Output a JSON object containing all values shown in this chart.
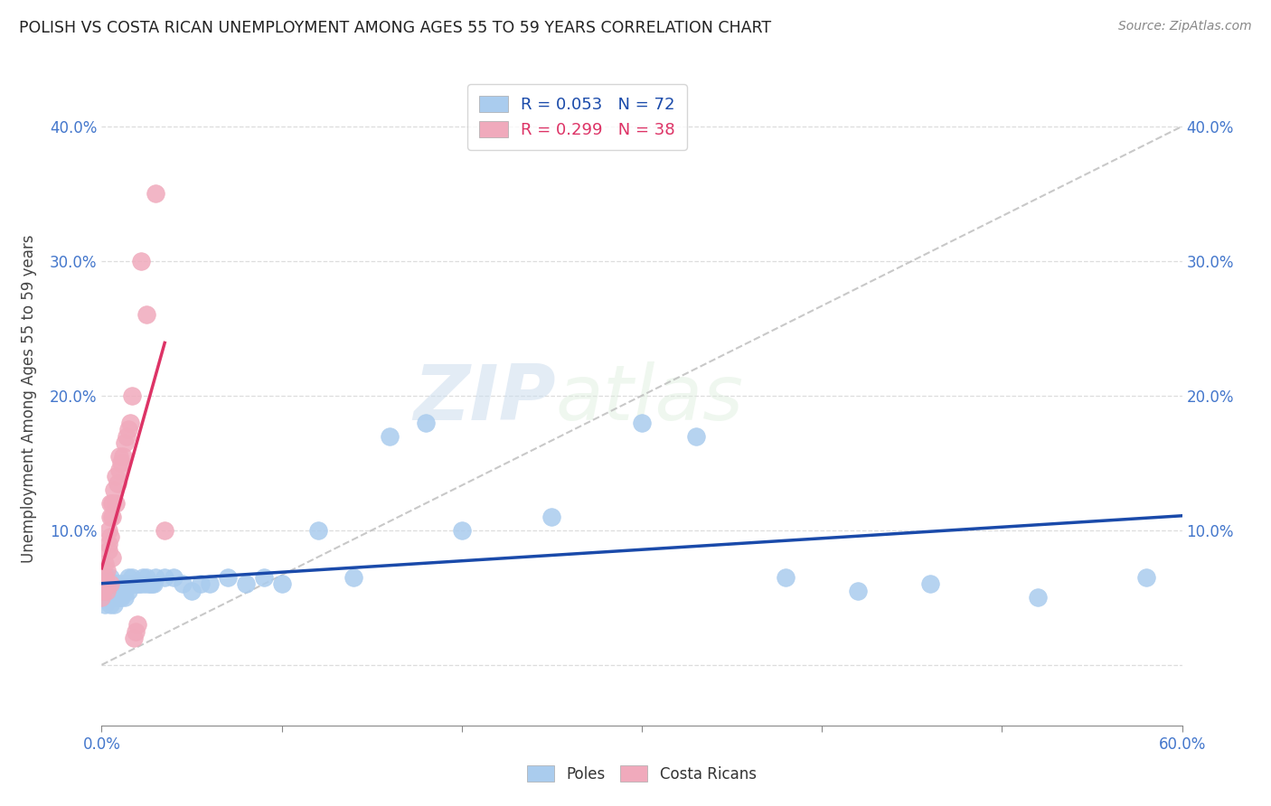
{
  "title": "POLISH VS COSTA RICAN UNEMPLOYMENT AMONG AGES 55 TO 59 YEARS CORRELATION CHART",
  "source": "Source: ZipAtlas.com",
  "ylabel": "Unemployment Among Ages 55 to 59 years",
  "xlim": [
    0.0,
    0.6
  ],
  "ylim": [
    -0.045,
    0.44
  ],
  "yticks": [
    0.0,
    0.1,
    0.2,
    0.3,
    0.4
  ],
  "yticklabels": [
    "",
    "10.0%",
    "20.0%",
    "30.0%",
    "40.0%"
  ],
  "yticklabels_right": [
    "",
    "10.0%",
    "20.0%",
    "30.0%",
    "40.0%"
  ],
  "xtick_positions": [
    0.0,
    0.1,
    0.2,
    0.3,
    0.4,
    0.5,
    0.6
  ],
  "xticklabels": [
    "0.0%",
    "",
    "",
    "",
    "",
    "",
    "60.0%"
  ],
  "poles_color": "#aaccee",
  "cr_color": "#f0aabc",
  "trend_poles_color": "#1a4aaa",
  "trend_cr_color": "#dd3366",
  "poles_R": 0.053,
  "poles_N": 72,
  "cr_R": 0.299,
  "cr_N": 38,
  "watermark_zip": "ZIP",
  "watermark_atlas": "atlas",
  "poles_x": [
    0.0,
    0.0,
    0.0,
    0.001,
    0.002,
    0.003,
    0.003,
    0.004,
    0.004,
    0.004,
    0.005,
    0.005,
    0.005,
    0.005,
    0.005,
    0.006,
    0.006,
    0.007,
    0.007,
    0.007,
    0.008,
    0.008,
    0.009,
    0.01,
    0.01,
    0.01,
    0.011,
    0.012,
    0.012,
    0.013,
    0.013,
    0.014,
    0.015,
    0.015,
    0.016,
    0.017,
    0.018,
    0.019,
    0.02,
    0.021,
    0.022,
    0.023,
    0.024,
    0.025,
    0.026,
    0.027,
    0.028,
    0.029,
    0.03,
    0.035,
    0.04,
    0.045,
    0.05,
    0.055,
    0.06,
    0.07,
    0.08,
    0.09,
    0.1,
    0.12,
    0.14,
    0.16,
    0.18,
    0.2,
    0.25,
    0.3,
    0.33,
    0.38,
    0.42,
    0.46,
    0.52,
    0.58
  ],
  "poles_y": [
    0.05,
    0.06,
    0.055,
    0.058,
    0.045,
    0.06,
    0.065,
    0.055,
    0.05,
    0.06,
    0.045,
    0.055,
    0.06,
    0.065,
    0.05,
    0.055,
    0.06,
    0.045,
    0.055,
    0.06,
    0.05,
    0.06,
    0.055,
    0.05,
    0.06,
    0.055,
    0.05,
    0.055,
    0.06,
    0.05,
    0.055,
    0.06,
    0.055,
    0.065,
    0.06,
    0.065,
    0.06,
    0.06,
    0.06,
    0.06,
    0.06,
    0.065,
    0.06,
    0.065,
    0.06,
    0.06,
    0.06,
    0.06,
    0.065,
    0.065,
    0.065,
    0.06,
    0.055,
    0.06,
    0.06,
    0.065,
    0.06,
    0.065,
    0.06,
    0.1,
    0.065,
    0.17,
    0.18,
    0.1,
    0.11,
    0.18,
    0.17,
    0.065,
    0.055,
    0.06,
    0.05,
    0.065
  ],
  "cr_x": [
    0.0,
    0.001,
    0.001,
    0.002,
    0.002,
    0.003,
    0.003,
    0.003,
    0.004,
    0.004,
    0.004,
    0.005,
    0.005,
    0.005,
    0.005,
    0.006,
    0.006,
    0.006,
    0.007,
    0.008,
    0.008,
    0.009,
    0.01,
    0.01,
    0.011,
    0.012,
    0.013,
    0.014,
    0.015,
    0.016,
    0.017,
    0.018,
    0.019,
    0.02,
    0.022,
    0.025,
    0.03,
    0.035
  ],
  "cr_y": [
    0.05,
    0.06,
    0.055,
    0.065,
    0.075,
    0.07,
    0.06,
    0.055,
    0.09,
    0.1,
    0.085,
    0.12,
    0.11,
    0.095,
    0.06,
    0.11,
    0.12,
    0.08,
    0.13,
    0.14,
    0.12,
    0.135,
    0.145,
    0.155,
    0.15,
    0.155,
    0.165,
    0.17,
    0.175,
    0.18,
    0.2,
    0.02,
    0.025,
    0.03,
    0.3,
    0.26,
    0.35,
    0.1
  ]
}
